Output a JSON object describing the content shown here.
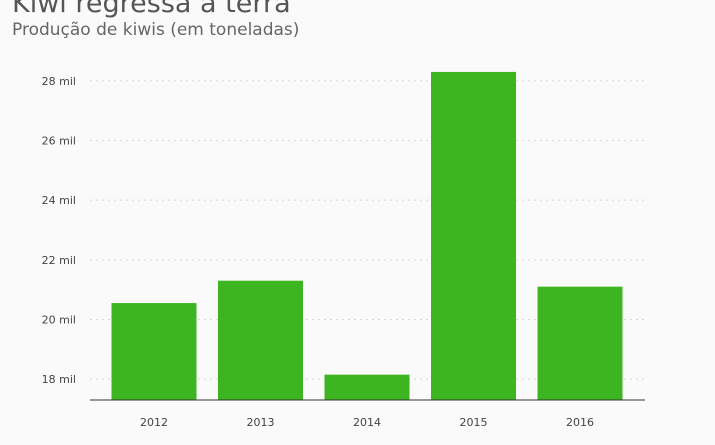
{
  "chart_data": {
    "type": "bar",
    "title": "Kiwi regressa à terra",
    "subtitle": "Produção de kiwis (em toneladas)",
    "categories": [
      "2012",
      "2013",
      "2014",
      "2015",
      "2016"
    ],
    "values": [
      20550,
      21300,
      18150,
      28300,
      21100
    ],
    "ylim": [
      17300,
      28700
    ],
    "yticks": [
      18000,
      20000,
      22000,
      24000,
      26000,
      28000
    ],
    "ytick_labels": [
      "18 mil",
      "20 mil",
      "22 mil",
      "24 mil",
      "26 mil",
      "28 mil"
    ],
    "bar_color": "#3db521",
    "grid": true,
    "legend": "none"
  }
}
